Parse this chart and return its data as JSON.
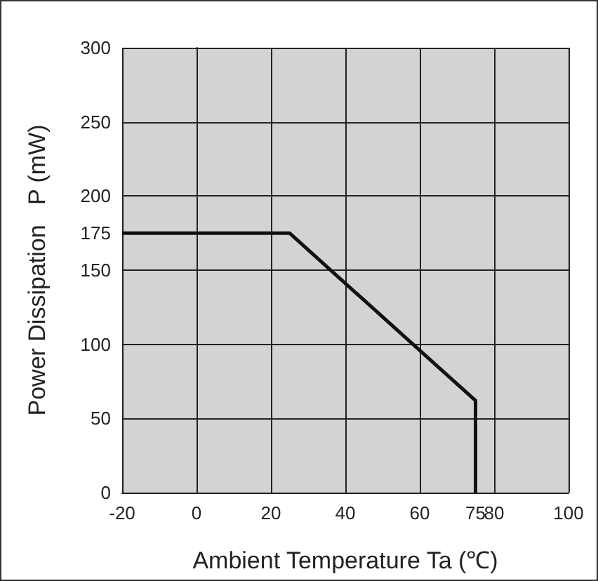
{
  "chart_data": {
    "type": "line",
    "xlabel": "Ambient Temperature Ta (℃)",
    "ylabel": "Power Dissipation   P (mW)",
    "x": [
      -20,
      25,
      75,
      75
    ],
    "series": [
      {
        "color": "#111111",
        "values": [
          175,
          175,
          62,
          0
        ]
      }
    ],
    "xlim": [
      -20,
      100
    ],
    "xticks": [
      -20,
      0,
      20,
      40,
      60,
      75,
      80,
      100
    ],
    "ylim": [
      0,
      300
    ],
    "yticks": [
      0,
      50,
      100,
      150,
      175,
      200,
      250,
      300
    ],
    "grid": true,
    "marker": "none",
    "line_style": "solid"
  }
}
